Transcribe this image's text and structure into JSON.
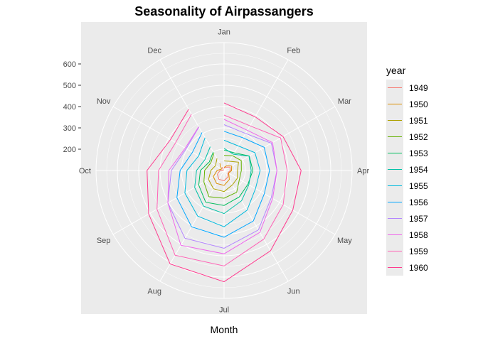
{
  "chart_data": {
    "type": "line",
    "coord": "polar",
    "title": "Seasonality of Airpassangers",
    "xlabel": "Month",
    "ylabel": "",
    "categories": [
      "Jan",
      "Feb",
      "Mar",
      "Apr",
      "May",
      "Jun",
      "Jul",
      "Aug",
      "Sep",
      "Oct",
      "Nov",
      "Dec"
    ],
    "radial_ticks": [
      200,
      300,
      400,
      500,
      600
    ],
    "rlim": [
      100,
      700
    ],
    "grid": true,
    "legend": {
      "title": "year",
      "position": "right"
    },
    "series": [
      {
        "name": "1949",
        "color": "#F8766D",
        "values": [
          112,
          118,
          132,
          129,
          121,
          135,
          148,
          148,
          136,
          119,
          104,
          118
        ]
      },
      {
        "name": "1950",
        "color": "#DB8E00",
        "values": [
          115,
          126,
          141,
          135,
          125,
          149,
          170,
          170,
          158,
          133,
          114,
          140
        ]
      },
      {
        "name": "1951",
        "color": "#AEA200",
        "values": [
          145,
          150,
          178,
          163,
          172,
          178,
          199,
          199,
          184,
          162,
          146,
          166
        ]
      },
      {
        "name": "1952",
        "color": "#64B200",
        "values": [
          171,
          180,
          193,
          181,
          183,
          218,
          230,
          242,
          209,
          191,
          172,
          194
        ]
      },
      {
        "name": "1953",
        "color": "#00BD5C",
        "values": [
          196,
          196,
          236,
          235,
          229,
          243,
          264,
          272,
          237,
          211,
          180,
          201
        ]
      },
      {
        "name": "1954",
        "color": "#00C1A7",
        "values": [
          204,
          188,
          235,
          227,
          234,
          264,
          302,
          293,
          259,
          229,
          203,
          229
        ]
      },
      {
        "name": "1955",
        "color": "#00BADE",
        "values": [
          242,
          233,
          267,
          269,
          270,
          315,
          364,
          347,
          312,
          274,
          237,
          278
        ]
      },
      {
        "name": "1956",
        "color": "#00A6FF",
        "values": [
          284,
          277,
          317,
          313,
          318,
          374,
          413,
          405,
          355,
          306,
          271,
          306
        ]
      },
      {
        "name": "1957",
        "color": "#B385FF",
        "values": [
          315,
          301,
          356,
          348,
          355,
          422,
          465,
          467,
          404,
          347,
          305,
          336
        ]
      },
      {
        "name": "1958",
        "color": "#EF67EB",
        "values": [
          340,
          318,
          362,
          348,
          363,
          435,
          491,
          505,
          404,
          359,
          310,
          337
        ]
      },
      {
        "name": "1959",
        "color": "#FF63B6",
        "values": [
          360,
          342,
          406,
          396,
          420,
          472,
          548,
          559,
          463,
          407,
          362,
          405
        ]
      },
      {
        "name": "1960",
        "color": "#FF3A8E",
        "values": [
          417,
          391,
          419,
          461,
          472,
          535,
          622,
          606,
          508,
          461,
          390,
          432
        ]
      }
    ]
  }
}
